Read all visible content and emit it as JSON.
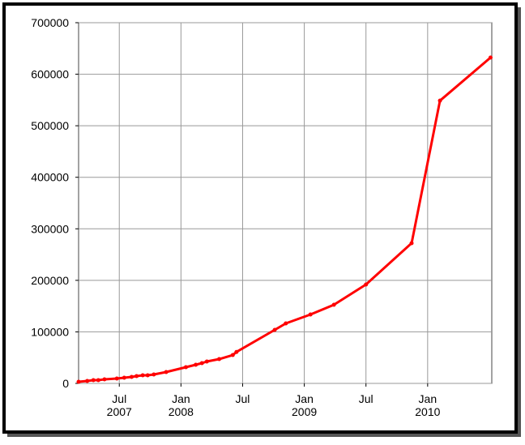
{
  "chart_data": {
    "type": "line",
    "x": [
      2007.17,
      2007.24,
      2007.29,
      2007.33,
      2007.38,
      2007.48,
      2007.54,
      2007.6,
      2007.64,
      2007.69,
      2007.73,
      2007.78,
      2007.88,
      2008.04,
      2008.12,
      2008.17,
      2008.21,
      2008.31,
      2008.42,
      2008.45,
      2008.76,
      2008.85,
      2009.05,
      2009.24,
      2009.5,
      2009.87,
      2010.1,
      2010.51
    ],
    "series": [
      {
        "color": "#ff0000",
        "values": [
          3146,
          4719,
          6292,
          6292,
          7865,
          9438,
          11011,
          12584,
          14157,
          15730,
          15730,
          17303,
          22022,
          31460,
          36179,
          39325,
          42471,
          47190,
          55055,
          61000,
          103800,
          116400,
          133700,
          152600,
          191900,
          272100,
          548700,
          632300
        ]
      }
    ],
    "xlim": [
      2007.17,
      2010.52
    ],
    "xticks": [
      {
        "value": 2007.5,
        "label": "Jul 2007"
      },
      {
        "value": 2008,
        "label": "Jan 2008"
      },
      {
        "value": 2008.5,
        "label": "Jul"
      },
      {
        "value": 2009,
        "label": "Jan 2009"
      },
      {
        "value": 2009.5,
        "label": "Jul"
      },
      {
        "value": 2010,
        "label": "Jan 2010"
      }
    ],
    "ylim": [
      0,
      700000
    ],
    "yticks": [
      0,
      100000,
      200000,
      300000,
      400000,
      500000,
      600000,
      700000
    ],
    "grid": true
  }
}
